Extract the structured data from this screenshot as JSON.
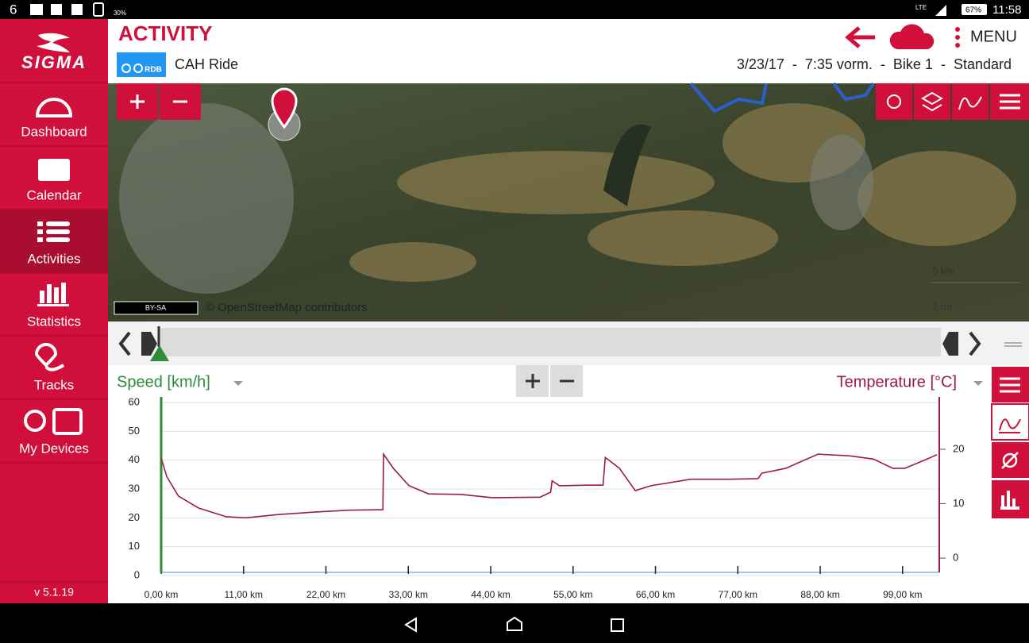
{
  "status_bar": {
    "notification": "6",
    "battery_small": "30%",
    "network": "LTE",
    "battery": "67%",
    "time": "11:58"
  },
  "sidebar": {
    "logo": "SIGMA",
    "nav": [
      "Dashboard",
      "Calendar",
      "Activities",
      "Statistics",
      "Tracks",
      "My Devices"
    ],
    "version": "v 5.1.19"
  },
  "header": {
    "title": "ACTIVITY",
    "menu": "MENU",
    "badge": "RDB",
    "activity_name": "CAH Ride",
    "meta": "3/23/17  -  7:35 vorm.  -  Bike 1  -  Standard"
  },
  "map": {
    "license": "BY-SA",
    "attribution": "© OpenStreetMap contributors",
    "scale_km": "5 km",
    "scale_mi": "2 mi"
  },
  "chart_data": {
    "type": "line",
    "y_label": "Speed [km/h]",
    "y_color": "#2e8b3a",
    "grid": true,
    "x": [
      0,
      0.74,
      2.3,
      5.0,
      8.7,
      11.3,
      15.6,
      20.9,
      25.1,
      29.6,
      29.7,
      31.0,
      33.1,
      35.7,
      40.0,
      44.2,
      50.6,
      52.0,
      52.2,
      53.2,
      56.9,
      59.0,
      59.3,
      61.2,
      63.3,
      65.4,
      70.7,
      76.0,
      79.7,
      80.2,
      83.4,
      87.7,
      91.9,
      95.1,
      97.7,
      99.3,
      101.4,
      103.6
    ],
    "series": [
      {
        "name": "Temperature [°C]",
        "color": "#9b1b45",
        "axis": "y2",
        "values": [
          18.4,
          15.0,
          11.4,
          9.2,
          7.6,
          7.4,
          8.0,
          8.5,
          8.8,
          8.9,
          19.1,
          16.5,
          13.3,
          11.8,
          11.7,
          11.1,
          11.2,
          12.1,
          14.2,
          13.3,
          13.4,
          13.4,
          18.5,
          16.5,
          12.4,
          13.3,
          14.5,
          14.5,
          14.6,
          15.6,
          16.5,
          19.1,
          18.8,
          18.2,
          16.5,
          16.5,
          17.7,
          19.0
        ]
      }
    ],
    "xlim": [
      0,
      103.9
    ],
    "xticks": [
      {
        "value": 0,
        "label": "0,00 km"
      },
      {
        "value": 11,
        "label": "11,00 km"
      },
      {
        "value": 22,
        "label": "22,00 km"
      },
      {
        "value": 33,
        "label": "33,00 km"
      },
      {
        "value": 44,
        "label": "44,00 km"
      },
      {
        "value": 55,
        "label": "55,00 km"
      },
      {
        "value": 66,
        "label": "66,00 km"
      },
      {
        "value": 77,
        "label": "77,00 km"
      },
      {
        "value": 88,
        "label": "88,00 km"
      },
      {
        "value": 99,
        "label": "99,00 km"
      }
    ],
    "ylim": [
      0,
      60
    ],
    "yticks": [
      0,
      10,
      20,
      30,
      40,
      50,
      60
    ],
    "y2lim": [
      -3.2,
      28.6
    ],
    "y2ticks": [
      0,
      10,
      20
    ]
  }
}
